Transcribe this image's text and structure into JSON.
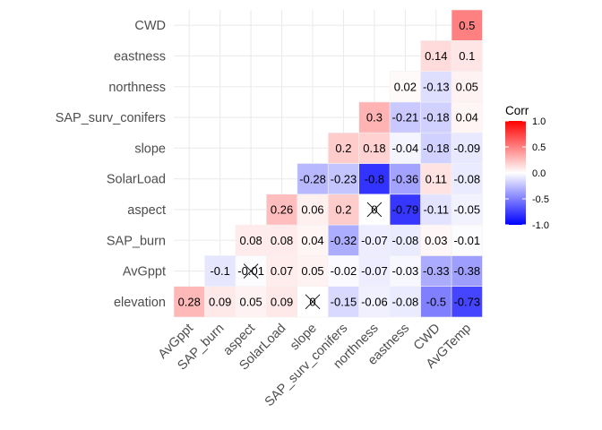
{
  "chart_data": {
    "type": "heatmap",
    "title": "",
    "xlabel": "",
    "ylabel": "",
    "x_categories": [
      "AvGppt",
      "SAP_burn",
      "aspect",
      "SolarLoad",
      "slope",
      "SAP_surv_conifers",
      "northness",
      "eastness",
      "CWD",
      "AvGTemp"
    ],
    "y_categories": [
      "elevation",
      "AvGppt",
      "SAP_burn",
      "aspect",
      "SolarLoad",
      "slope",
      "SAP_surv_conifers",
      "northness",
      "eastness",
      "CWD"
    ],
    "cells": [
      {
        "x": "AvGppt",
        "y": "elevation",
        "value": 0.28,
        "label": "0.28"
      },
      {
        "x": "SAP_burn",
        "y": "elevation",
        "value": 0.09,
        "label": "0.09"
      },
      {
        "x": "aspect",
        "y": "elevation",
        "value": 0.05,
        "label": "0.05"
      },
      {
        "x": "SolarLoad",
        "y": "elevation",
        "value": 0.09,
        "label": "0.09"
      },
      {
        "x": "slope",
        "y": "elevation",
        "value": 0,
        "label": "0",
        "insignificant": true
      },
      {
        "x": "SAP_surv_conifers",
        "y": "elevation",
        "value": -0.15,
        "label": "-0.15"
      },
      {
        "x": "northness",
        "y": "elevation",
        "value": -0.06,
        "label": "-0.06"
      },
      {
        "x": "eastness",
        "y": "elevation",
        "value": -0.08,
        "label": "-0.08"
      },
      {
        "x": "CWD",
        "y": "elevation",
        "value": -0.5,
        "label": "-0.5"
      },
      {
        "x": "AvGTemp",
        "y": "elevation",
        "value": -0.73,
        "label": "-0.73"
      },
      {
        "x": "SAP_burn",
        "y": "AvGppt",
        "value": -0.1,
        "label": "-0.1"
      },
      {
        "x": "aspect",
        "y": "AvGppt",
        "value": -0.01,
        "label": "-0.01",
        "insignificant": true
      },
      {
        "x": "SolarLoad",
        "y": "AvGppt",
        "value": 0.07,
        "label": "0.07"
      },
      {
        "x": "slope",
        "y": "AvGppt",
        "value": 0.05,
        "label": "0.05"
      },
      {
        "x": "SAP_surv_conifers",
        "y": "AvGppt",
        "value": -0.02,
        "label": "-0.02"
      },
      {
        "x": "northness",
        "y": "AvGppt",
        "value": -0.07,
        "label": "-0.07"
      },
      {
        "x": "eastness",
        "y": "AvGppt",
        "value": -0.03,
        "label": "-0.03"
      },
      {
        "x": "CWD",
        "y": "AvGppt",
        "value": -0.33,
        "label": "-0.33"
      },
      {
        "x": "AvGTemp",
        "y": "AvGppt",
        "value": -0.38,
        "label": "-0.38"
      },
      {
        "x": "aspect",
        "y": "SAP_burn",
        "value": 0.08,
        "label": "0.08"
      },
      {
        "x": "SolarLoad",
        "y": "SAP_burn",
        "value": 0.08,
        "label": "0.08"
      },
      {
        "x": "slope",
        "y": "SAP_burn",
        "value": 0.04,
        "label": "0.04"
      },
      {
        "x": "SAP_surv_conifers",
        "y": "SAP_burn",
        "value": -0.32,
        "label": "-0.32"
      },
      {
        "x": "northness",
        "y": "SAP_burn",
        "value": -0.07,
        "label": "-0.07"
      },
      {
        "x": "eastness",
        "y": "SAP_burn",
        "value": -0.08,
        "label": "-0.08"
      },
      {
        "x": "CWD",
        "y": "SAP_burn",
        "value": 0.03,
        "label": "0.03"
      },
      {
        "x": "AvGTemp",
        "y": "SAP_burn",
        "value": -0.01,
        "label": "-0.01"
      },
      {
        "x": "SolarLoad",
        "y": "aspect",
        "value": 0.26,
        "label": "0.26"
      },
      {
        "x": "slope",
        "y": "aspect",
        "value": 0.06,
        "label": "0.06"
      },
      {
        "x": "SAP_surv_conifers",
        "y": "aspect",
        "value": 0.2,
        "label": "0.2"
      },
      {
        "x": "northness",
        "y": "aspect",
        "value": 0,
        "label": "0",
        "insignificant": true
      },
      {
        "x": "eastness",
        "y": "aspect",
        "value": -0.79,
        "label": "-0.79"
      },
      {
        "x": "CWD",
        "y": "aspect",
        "value": -0.11,
        "label": "-0.11"
      },
      {
        "x": "AvGTemp",
        "y": "aspect",
        "value": -0.05,
        "label": "-0.05"
      },
      {
        "x": "slope",
        "y": "SolarLoad",
        "value": -0.28,
        "label": "-0.28"
      },
      {
        "x": "SAP_surv_conifers",
        "y": "SolarLoad",
        "value": -0.23,
        "label": "-0.23"
      },
      {
        "x": "northness",
        "y": "SolarLoad",
        "value": -0.8,
        "label": "-0.8"
      },
      {
        "x": "eastness",
        "y": "SolarLoad",
        "value": -0.36,
        "label": "-0.36"
      },
      {
        "x": "CWD",
        "y": "SolarLoad",
        "value": 0.11,
        "label": "0.11"
      },
      {
        "x": "AvGTemp",
        "y": "SolarLoad",
        "value": -0.08,
        "label": "-0.08"
      },
      {
        "x": "SAP_surv_conifers",
        "y": "slope",
        "value": 0.2,
        "label": "0.2"
      },
      {
        "x": "northness",
        "y": "slope",
        "value": 0.18,
        "label": "0.18"
      },
      {
        "x": "eastness",
        "y": "slope",
        "value": -0.04,
        "label": "-0.04"
      },
      {
        "x": "CWD",
        "y": "slope",
        "value": -0.18,
        "label": "-0.18"
      },
      {
        "x": "AvGTemp",
        "y": "slope",
        "value": -0.09,
        "label": "-0.09"
      },
      {
        "x": "northness",
        "y": "SAP_surv_conifers",
        "value": 0.3,
        "label": "0.3"
      },
      {
        "x": "eastness",
        "y": "SAP_surv_conifers",
        "value": -0.21,
        "label": "-0.21"
      },
      {
        "x": "CWD",
        "y": "SAP_surv_conifers",
        "value": -0.18,
        "label": "-0.18"
      },
      {
        "x": "AvGTemp",
        "y": "SAP_surv_conifers",
        "value": 0.04,
        "label": "0.04"
      },
      {
        "x": "eastness",
        "y": "northness",
        "value": 0.02,
        "label": "0.02"
      },
      {
        "x": "CWD",
        "y": "northness",
        "value": -0.13,
        "label": "-0.13"
      },
      {
        "x": "AvGTemp",
        "y": "northness",
        "value": 0.05,
        "label": "0.05"
      },
      {
        "x": "CWD",
        "y": "eastness",
        "value": 0.14,
        "label": "0.14"
      },
      {
        "x": "AvGTemp",
        "y": "eastness",
        "value": 0.1,
        "label": "0.1"
      },
      {
        "x": "AvGTemp",
        "y": "CWD",
        "value": 0.5,
        "label": "0.5"
      }
    ],
    "color_scale": {
      "low": "#0000ff",
      "mid": "#ffffff",
      "high": "#ff0000",
      "limits": [
        -1,
        1
      ]
    },
    "legend": {
      "title": "Corr",
      "position": "right",
      "ticks": [
        {
          "value": 1,
          "label": "1.0"
        },
        {
          "value": 0.5,
          "label": "0.5"
        },
        {
          "value": 0,
          "label": "0.0"
        },
        {
          "value": -0.5,
          "label": "-0.5"
        },
        {
          "value": -1,
          "label": "-1.0"
        }
      ]
    },
    "grid": true,
    "x_tick_rotation_degrees": 45
  }
}
